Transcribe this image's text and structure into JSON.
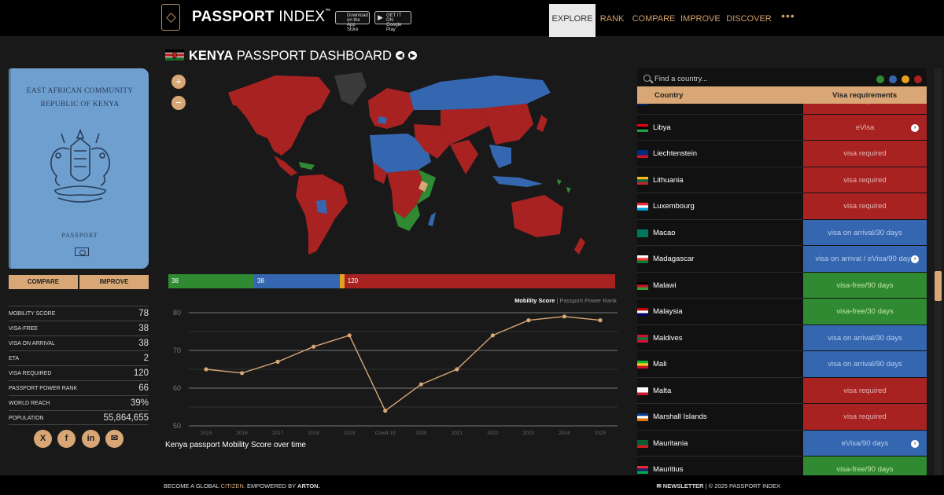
{
  "header": {
    "brand_bold": "PASSPORT",
    "brand_thin": " INDEX",
    "brand_tm": "™",
    "app_store": "Download on the App Store",
    "google_play": "GET IT ON Google Play",
    "nav": [
      "EXPLORE",
      "RANK",
      "COMPARE",
      "IMPROVE",
      "DISCOVER"
    ],
    "more": "•••"
  },
  "passport": {
    "line1": "EAST AFRICAN COMMUNITY",
    "line2": "REPUBLIC OF KENYA",
    "line3": "PASSPORT",
    "compare_btn": "COMPARE",
    "improve_btn": "IMPROVE"
  },
  "stats": [
    {
      "label": "MOBILITY SCORE",
      "value": "78"
    },
    {
      "label": "VISA-FREE",
      "value": "38"
    },
    {
      "label": "VISA ON ARRIVAL",
      "value": "38"
    },
    {
      "label": "ETA",
      "value": "2"
    },
    {
      "label": "VISA REQUIRED",
      "value": "120"
    },
    {
      "label": "PASSPORT POWER RANK",
      "value": "66"
    },
    {
      "label": "WORLD REACH",
      "value": "39%"
    },
    {
      "label": "POPULATION",
      "value": "55,864,655"
    }
  ],
  "social": [
    "X",
    "f",
    "in",
    "✉"
  ],
  "dashboard": {
    "title_bold": "KENYA",
    "title_rest": " PASSPORT DASHBOARD",
    "prev": "◀",
    "next": "▶",
    "zoom_in": "+",
    "zoom_out": "−"
  },
  "distribution": [
    {
      "label": "38",
      "value": 38,
      "color": "#2f8a32"
    },
    {
      "label": "38",
      "value": 38,
      "color": "#3567b0"
    },
    {
      "label": "",
      "value": 2,
      "color": "#e6a020"
    },
    {
      "label": "120",
      "value": 120,
      "color": "#a82222"
    }
  ],
  "chart_legend": {
    "active": "Mobility Score",
    "sep": " | ",
    "inactive": "Passport Power Rank"
  },
  "chart_data": {
    "type": "line",
    "title": "",
    "xlabel": "",
    "ylabel": "",
    "x": [
      "2015",
      "2016",
      "2017",
      "2018",
      "2019",
      "Covid-19",
      "2020",
      "2021",
      "2022",
      "2023",
      "2024",
      "2025"
    ],
    "series": [
      {
        "name": "Mobility Score",
        "values": [
          65,
          64,
          67,
          71,
          74,
          54,
          61,
          65,
          74,
          78,
          79,
          78
        ]
      }
    ],
    "ylim": [
      50,
      80
    ],
    "yticks": [
      50,
      60,
      70,
      80
    ],
    "grid": true,
    "line_color": "#d8a775"
  },
  "chart_caption": "Kenya passport Mobility Score over time",
  "table": {
    "search_placeholder": "Find a country...",
    "filter_colors": [
      "#2f8a32",
      "#3567b0",
      "#e6a020",
      "#a82222"
    ],
    "col_country": "Country",
    "col_visa": "Visa requirements",
    "rows": [
      {
        "name": "Liberia",
        "req": "visa required",
        "type": "red",
        "info": false
      },
      {
        "name": "Libya",
        "req": "eVisa",
        "type": "red",
        "info": true
      },
      {
        "name": "Liechtenstein",
        "req": "visa required",
        "type": "red",
        "info": false
      },
      {
        "name": "Lithuania",
        "req": "visa required",
        "type": "red",
        "info": false
      },
      {
        "name": "Luxembourg",
        "req": "visa required",
        "type": "red",
        "info": false
      },
      {
        "name": "Macao",
        "req": "visa on arrival/30 days",
        "type": "blue",
        "info": false
      },
      {
        "name": "Madagascar",
        "req": "visa on arrival / eVisa/90 days",
        "type": "blue",
        "info": true
      },
      {
        "name": "Malawi",
        "req": "visa-free/90 days",
        "type": "green",
        "info": false
      },
      {
        "name": "Malaysia",
        "req": "visa-free/30 days",
        "type": "green",
        "info": false
      },
      {
        "name": "Maldives",
        "req": "visa on arrival/30 days",
        "type": "blue",
        "info": false
      },
      {
        "name": "Mali",
        "req": "visa on arrival/90 days",
        "type": "blue",
        "info": false
      },
      {
        "name": "Malta",
        "req": "visa required",
        "type": "red",
        "info": false
      },
      {
        "name": "Marshall Islands",
        "req": "visa required",
        "type": "red",
        "info": false
      },
      {
        "name": "Mauritania",
        "req": "eVisa/90 days",
        "type": "blue",
        "info": true
      },
      {
        "name": "Mauritius",
        "req": "visa-free/90 days",
        "type": "green",
        "info": false
      }
    ]
  },
  "footer": {
    "become": "BECOME A GLOBAL ",
    "citizen": "CITIZEN.",
    "empowered": "  EMPOWERED BY ",
    "arton": "ARTON.",
    "newsletter": "✉ NEWSLETTER",
    "copyright": " | © 2025 PASSPORT INDEX"
  }
}
